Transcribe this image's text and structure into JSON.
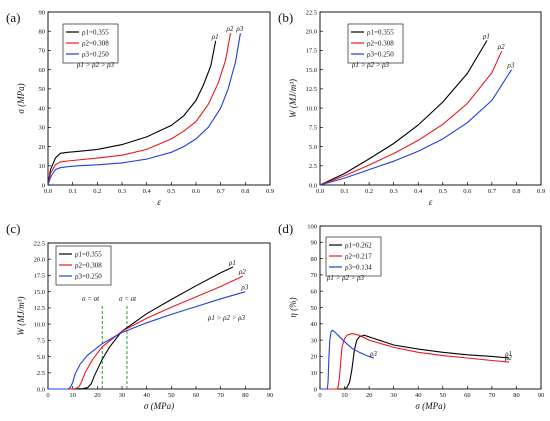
{
  "chart_data": [
    {
      "panel": "(a)",
      "type": "line",
      "xlabel": "ε",
      "ylabel": "σ (MPa)",
      "xlim": [
        0.0,
        0.9
      ],
      "ylim": [
        0,
        90
      ],
      "xticks": [
        "0.0",
        "0.1",
        "0.2",
        "0.3",
        "0.4",
        "0.5",
        "0.6",
        "0.7",
        "0.8",
        "0.9"
      ],
      "yticks": [
        "0",
        "10",
        "20",
        "30",
        "40",
        "50",
        "60",
        "70",
        "80",
        "90"
      ],
      "xticks_val": [
        0,
        0.1,
        0.2,
        0.3,
        0.4,
        0.5,
        0.6,
        0.7,
        0.8,
        0.9
      ],
      "yticks_val": [
        0,
        10,
        20,
        30,
        40,
        50,
        60,
        70,
        80,
        90
      ],
      "legend": "top-left",
      "annotation": "ρ1 > ρ2 > ρ3",
      "series": [
        {
          "name": "ρ1=0.355",
          "end_label": "ρ1",
          "color": "#000000",
          "x": [
            0,
            0.01,
            0.03,
            0.05,
            0.08,
            0.12,
            0.2,
            0.3,
            0.4,
            0.5,
            0.55,
            0.6,
            0.63,
            0.66,
            0.68
          ],
          "y": [
            0,
            8,
            14,
            16.5,
            17,
            17.5,
            18.5,
            21,
            25,
            31,
            36,
            44,
            52,
            62,
            75
          ]
        },
        {
          "name": "ρ2=0.308",
          "end_label": "ρ2",
          "color": "#e8191f",
          "x": [
            0,
            0.01,
            0.03,
            0.05,
            0.08,
            0.12,
            0.2,
            0.3,
            0.4,
            0.5,
            0.55,
            0.6,
            0.65,
            0.69,
            0.72,
            0.74
          ],
          "y": [
            0,
            6,
            10.5,
            12,
            12.5,
            13,
            14,
            15.5,
            18.5,
            24,
            28,
            33,
            42,
            53,
            65,
            79
          ]
        },
        {
          "name": "ρ3=0.250",
          "end_label": "ρ3",
          "color": "#1f3fe0",
          "x": [
            0,
            0.01,
            0.03,
            0.05,
            0.08,
            0.12,
            0.2,
            0.3,
            0.4,
            0.5,
            0.55,
            0.6,
            0.65,
            0.7,
            0.73,
            0.76,
            0.78
          ],
          "y": [
            0,
            4,
            8,
            9,
            9.5,
            10,
            10.5,
            11.5,
            13.5,
            17,
            20,
            24,
            30,
            40,
            50,
            64,
            79
          ]
        }
      ]
    },
    {
      "panel": "(b)",
      "type": "line",
      "xlabel": "ε",
      "ylabel": "W (MJ/m³)",
      "xlim": [
        0.0,
        0.9
      ],
      "ylim": [
        0,
        22.5
      ],
      "xticks": [
        "0.0",
        "0.1",
        "0.2",
        "0.3",
        "0.4",
        "0.5",
        "0.6",
        "0.7",
        "0.8",
        "0.9"
      ],
      "yticks": [
        "0.0",
        "2.5",
        "5.0",
        "7.5",
        "10.0",
        "12.5",
        "15.0",
        "17.5",
        "20.0",
        "22.5"
      ],
      "xticks_val": [
        0,
        0.1,
        0.2,
        0.3,
        0.4,
        0.5,
        0.6,
        0.7,
        0.8,
        0.9
      ],
      "yticks_val": [
        0,
        2.5,
        5,
        7.5,
        10,
        12.5,
        15,
        17.5,
        20,
        22.5
      ],
      "legend": "top-left",
      "annotation": "ρ1 > ρ2 > ρ3",
      "series": [
        {
          "name": "ρ1=0.355",
          "end_label": "ρ1",
          "color": "#000000",
          "x": [
            0,
            0.1,
            0.2,
            0.3,
            0.4,
            0.5,
            0.6,
            0.68
          ],
          "y": [
            0,
            1.5,
            3.4,
            5.4,
            7.8,
            10.8,
            14.5,
            18.8
          ]
        },
        {
          "name": "ρ2=0.308",
          "end_label": "ρ2",
          "color": "#e8191f",
          "x": [
            0,
            0.1,
            0.2,
            0.3,
            0.4,
            0.5,
            0.6,
            0.7,
            0.74
          ],
          "y": [
            0,
            1.2,
            2.6,
            4.1,
            5.8,
            7.9,
            10.6,
            14.6,
            17.4
          ]
        },
        {
          "name": "ρ3=0.250",
          "end_label": "ρ3",
          "color": "#1f3fe0",
          "x": [
            0,
            0.1,
            0.2,
            0.3,
            0.4,
            0.5,
            0.6,
            0.7,
            0.78
          ],
          "y": [
            0,
            0.9,
            2.0,
            3.1,
            4.4,
            6.0,
            8.1,
            11.0,
            15.0
          ]
        }
      ]
    },
    {
      "panel": "(c)",
      "type": "line",
      "xlabel": "σ (MPa)",
      "ylabel": "W (MJ/m³)",
      "xlim": [
        0,
        90
      ],
      "ylim": [
        0,
        22.5
      ],
      "xticks": [
        "0",
        "10",
        "20",
        "30",
        "40",
        "50",
        "60",
        "70",
        "80",
        "90"
      ],
      "yticks": [
        "0.0",
        "2.5",
        "5.0",
        "7.5",
        "10.0",
        "12.5",
        "15.0",
        "17.5",
        "20.0",
        "22.5"
      ],
      "xticks_val": [
        0,
        10,
        20,
        30,
        40,
        50,
        60,
        70,
        80,
        90
      ],
      "yticks_val": [
        0,
        2.5,
        5,
        7.5,
        10,
        12.5,
        15,
        17.5,
        20,
        22.5
      ],
      "legend": "top-left",
      "annotation": "ρ1 > ρ2 > ρ3",
      "vlines": [
        {
          "x": 22,
          "label": "σ = σt"
        },
        {
          "x": 32,
          "label": "σ = σt"
        }
      ],
      "series": [
        {
          "name": "ρ1=0.355",
          "end_label": "ρ1",
          "color": "#000000",
          "x": [
            0,
            10,
            14,
            16,
            17.5,
            19,
            22,
            25,
            30,
            40,
            50,
            60,
            70,
            75
          ],
          "y": [
            0,
            0,
            0.05,
            0.2,
            0.8,
            2.2,
            4.6,
            6.5,
            8.9,
            11.6,
            13.8,
            15.9,
            17.9,
            18.8
          ]
        },
        {
          "name": "ρ2=0.308",
          "end_label": "ρ2",
          "color": "#e8191f",
          "x": [
            0,
            9,
            11,
            12.5,
            13.5,
            15,
            18,
            22,
            30,
            40,
            50,
            60,
            70,
            79
          ],
          "y": [
            0,
            0,
            0.05,
            0.3,
            1.0,
            2.5,
            4.5,
            6.5,
            8.9,
            10.9,
            12.6,
            14.2,
            15.8,
            17.4
          ]
        },
        {
          "name": "ρ3=0.250",
          "end_label": "ρ3",
          "color": "#1f3fe0",
          "x": [
            0,
            8,
            9,
            10,
            11,
            13,
            16,
            22,
            30,
            40,
            50,
            60,
            70,
            80
          ],
          "y": [
            0,
            0,
            0.2,
            1.0,
            2.3,
            3.8,
            5.2,
            7.0,
            8.7,
            10.2,
            11.5,
            12.7,
            13.9,
            15.0
          ]
        }
      ]
    },
    {
      "panel": "(d)",
      "type": "line",
      "xlabel": "σ (MPa)",
      "ylabel": "η (%)",
      "xlim": [
        0,
        90
      ],
      "ylim": [
        0,
        100
      ],
      "xticks": [
        "0",
        "10",
        "20",
        "30",
        "40",
        "50",
        "60",
        "70",
        "80",
        "90"
      ],
      "yticks": [
        "0",
        "10",
        "20",
        "30",
        "40",
        "50",
        "60",
        "70",
        "80",
        "90",
        "100"
      ],
      "xticks_val": [
        0,
        10,
        20,
        30,
        40,
        50,
        60,
        70,
        80,
        90
      ],
      "yticks_val": [
        0,
        10,
        20,
        30,
        40,
        50,
        60,
        70,
        80,
        90,
        100
      ],
      "legend": "top-left",
      "annotation": "ρ1 > ρ2 > ρ3",
      "series": [
        {
          "name": "ρ1=0.262",
          "end_label": "ρ1",
          "color": "#000000",
          "x": [
            0,
            10,
            11,
            12,
            13,
            14,
            15,
            16,
            18,
            22,
            30,
            40,
            50,
            60,
            70,
            77
          ],
          "y": [
            0,
            0,
            1,
            4,
            12,
            24,
            30,
            32,
            33,
            31,
            27,
            24.5,
            22.5,
            21,
            20,
            19
          ]
        },
        {
          "name": "ρ2=0.217",
          "end_label": "ρ2",
          "color": "#e8191f",
          "x": [
            0,
            7,
            7.5,
            8,
            8.5,
            9,
            10,
            11,
            13,
            16,
            20,
            30,
            40,
            50,
            60,
            70,
            77
          ],
          "y": [
            0,
            0,
            2,
            8,
            18,
            26,
            31,
            33,
            34,
            33,
            30,
            25.5,
            22.5,
            20.5,
            19,
            17.5,
            16.5
          ]
        },
        {
          "name": "ρ3=0.134",
          "end_label": "ρ3",
          "color": "#1f3fe0",
          "x": [
            0,
            3,
            3.3,
            3.6,
            4,
            4.5,
            5,
            6,
            8,
            10,
            13,
            16,
            19,
            22
          ],
          "y": [
            0,
            0,
            5,
            18,
            30,
            35,
            36,
            35,
            32,
            29,
            25,
            22.5,
            20.5,
            19
          ]
        }
      ]
    }
  ]
}
